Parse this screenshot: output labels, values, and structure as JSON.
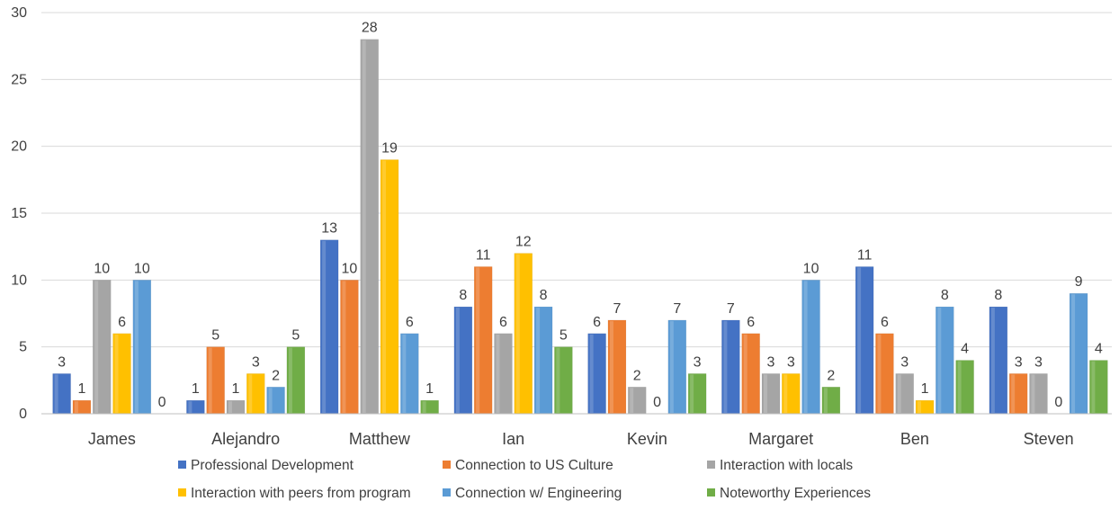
{
  "chart_data": {
    "type": "bar",
    "title": "",
    "xlabel": "",
    "ylabel": "",
    "ylim": [
      0,
      30
    ],
    "yticks": [
      0,
      5,
      10,
      15,
      20,
      25,
      30
    ],
    "grid": true,
    "legend_position": "bottom",
    "categories": [
      "James",
      "Alejandro",
      "Matthew",
      "Ian",
      "Kevin",
      "Margaret",
      "Ben",
      "Steven"
    ],
    "series": [
      {
        "name": "Professional Development",
        "color": "#4472C4",
        "values": [
          3,
          1,
          13,
          8,
          6,
          7,
          11,
          8
        ]
      },
      {
        "name": "Connection to US Culture",
        "color": "#ED7D31",
        "values": [
          1,
          5,
          10,
          11,
          7,
          6,
          6,
          3
        ]
      },
      {
        "name": "Interaction with locals",
        "color": "#A5A5A5",
        "values": [
          10,
          1,
          28,
          6,
          2,
          3,
          3,
          3
        ]
      },
      {
        "name": "Interaction with peers from program",
        "color": "#FFC000",
        "values": [
          6,
          3,
          19,
          12,
          0,
          3,
          1,
          0
        ]
      },
      {
        "name": "Connection w/ Engineering",
        "color": "#5B9BD5",
        "values": [
          10,
          2,
          6,
          8,
          7,
          10,
          8,
          9
        ]
      },
      {
        "name": "Noteworthy Experiences",
        "color": "#70AD47",
        "values": [
          0,
          5,
          1,
          5,
          3,
          2,
          4,
          4
        ]
      }
    ]
  }
}
